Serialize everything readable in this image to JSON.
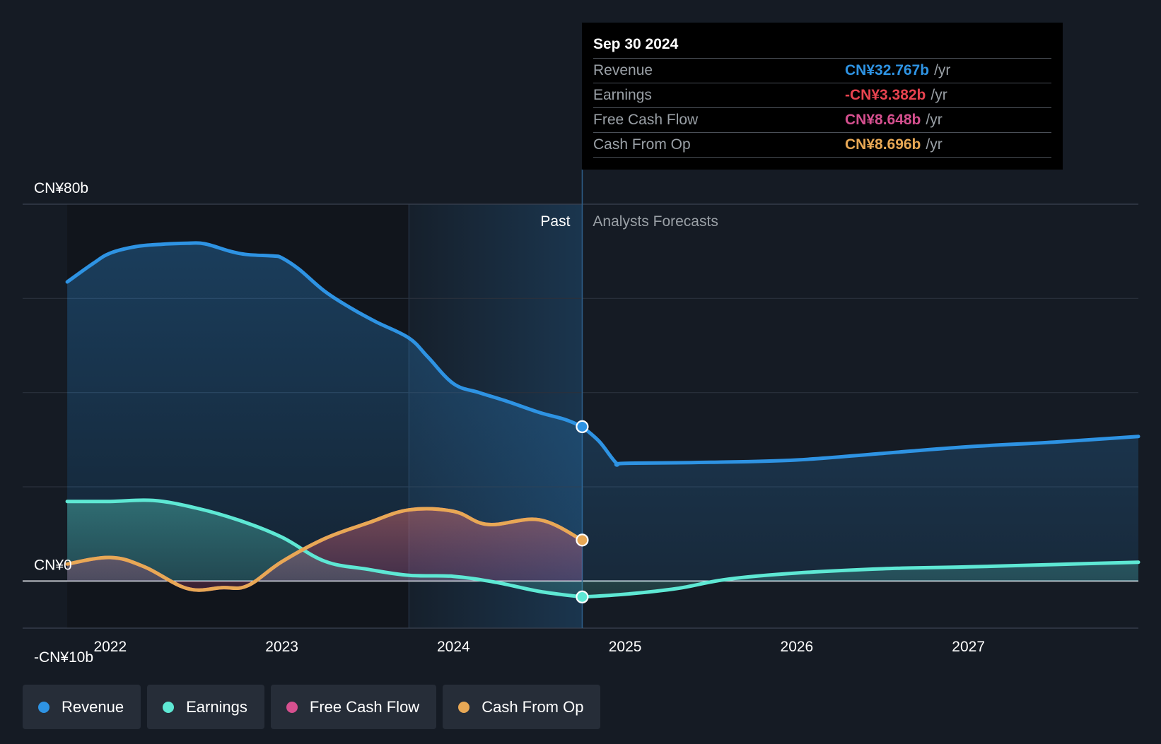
{
  "chart_data": {
    "type": "area",
    "currency_prefix": "CN¥",
    "y_labels": [
      {
        "value": 80,
        "text": "CN¥80b"
      },
      {
        "value": 0,
        "text": "CN¥0"
      },
      {
        "value": -10,
        "text": "-CN¥10b"
      }
    ],
    "ylim": [
      -10,
      80
    ],
    "gridlines": [
      80,
      60,
      40,
      20
    ],
    "x_ticks": [
      {
        "x": 2022,
        "label": "2022"
      },
      {
        "x": 2023,
        "label": "2023"
      },
      {
        "x": 2024,
        "label": "2024"
      },
      {
        "x": 2025,
        "label": "2025"
      },
      {
        "x": 2026,
        "label": "2026"
      },
      {
        "x": 2027,
        "label": "2027"
      }
    ],
    "xlim": [
      2021.49,
      2027.99
    ],
    "past_start": 2023.74,
    "divider_x": 2024.75,
    "past_label": "Past",
    "forecast_label": "Analysts Forecasts",
    "series": [
      {
        "name": "Revenue",
        "color": "#2e93e3",
        "fill_opacity": 0.28,
        "points": [
          [
            2021.75,
            63.5
          ],
          [
            2021.9,
            67.4
          ],
          [
            2022.0,
            69.6
          ],
          [
            2022.15,
            71.0
          ],
          [
            2022.3,
            71.5
          ],
          [
            2022.45,
            71.7
          ],
          [
            2022.55,
            71.6
          ],
          [
            2022.7,
            70.0
          ],
          [
            2022.8,
            69.3
          ],
          [
            2022.95,
            69.0
          ],
          [
            2023.0,
            68.6
          ],
          [
            2023.1,
            66.2
          ],
          [
            2023.25,
            61.5
          ],
          [
            2023.4,
            58.0
          ],
          [
            2023.55,
            55.0
          ],
          [
            2023.74,
            51.6
          ],
          [
            2023.85,
            47.6
          ],
          [
            2024.0,
            41.9
          ],
          [
            2024.15,
            40.0
          ],
          [
            2024.3,
            38.3
          ],
          [
            2024.5,
            35.8
          ],
          [
            2024.65,
            34.3
          ],
          [
            2024.75,
            32.767
          ]
        ],
        "forecast": [
          [
            2024.75,
            32.767
          ],
          [
            2024.85,
            29.6
          ],
          [
            2024.95,
            25.0
          ],
          [
            2025.0,
            25.0
          ],
          [
            2025.5,
            25.2
          ],
          [
            2026.0,
            25.7
          ],
          [
            2026.5,
            27.1
          ],
          [
            2027.0,
            28.5
          ],
          [
            2027.5,
            29.5
          ],
          [
            2027.99,
            30.7
          ]
        ]
      },
      {
        "name": "Earnings",
        "color": "#5ee8d4",
        "fill_opacity": 0.28,
        "points": [
          [
            2021.75,
            16.9
          ],
          [
            2022.0,
            16.9
          ],
          [
            2022.25,
            17.1
          ],
          [
            2022.5,
            15.5
          ],
          [
            2022.75,
            12.9
          ],
          [
            2023.0,
            9.3
          ],
          [
            2023.25,
            4.2
          ],
          [
            2023.5,
            2.5
          ],
          [
            2023.74,
            1.2
          ],
          [
            2024.0,
            1.0
          ],
          [
            2024.25,
            -0.3
          ],
          [
            2024.5,
            -2.2
          ],
          [
            2024.75,
            -3.382
          ]
        ],
        "forecast": [
          [
            2024.75,
            -3.382
          ],
          [
            2025.0,
            -2.8
          ],
          [
            2025.3,
            -1.6
          ],
          [
            2025.6,
            0.4
          ],
          [
            2026.0,
            1.7
          ],
          [
            2026.5,
            2.6
          ],
          [
            2027.0,
            3.0
          ],
          [
            2027.5,
            3.5
          ],
          [
            2027.99,
            4.0
          ]
        ]
      },
      {
        "name": "Free Cash Flow",
        "color": "#d6508f",
        "fill_opacity": 0.0,
        "points": [
          [
            2021.75,
            3.6
          ],
          [
            2022.0,
            5.0
          ],
          [
            2022.2,
            3.0
          ],
          [
            2022.45,
            -1.6
          ],
          [
            2022.65,
            -1.4
          ],
          [
            2022.8,
            -1.0
          ],
          [
            2023.0,
            4.1
          ],
          [
            2023.25,
            9.0
          ],
          [
            2023.5,
            12.3
          ],
          [
            2023.74,
            15.1
          ],
          [
            2024.0,
            14.8
          ],
          [
            2024.2,
            12.0
          ],
          [
            2024.5,
            13.0
          ],
          [
            2024.75,
            8.648
          ]
        ],
        "forecast": []
      },
      {
        "name": "Cash From Op",
        "color": "#e8a855",
        "fill_opacity": 0.28,
        "points": [
          [
            2021.75,
            3.6
          ],
          [
            2022.0,
            5.0
          ],
          [
            2022.2,
            3.0
          ],
          [
            2022.45,
            -1.6
          ],
          [
            2022.65,
            -1.4
          ],
          [
            2022.8,
            -1.0
          ],
          [
            2023.0,
            4.1
          ],
          [
            2023.25,
            9.0
          ],
          [
            2023.5,
            12.3
          ],
          [
            2023.74,
            15.1
          ],
          [
            2024.0,
            14.8
          ],
          [
            2024.2,
            12.0
          ],
          [
            2024.5,
            13.0
          ],
          [
            2024.75,
            8.696
          ]
        ],
        "forecast": []
      }
    ],
    "markers": [
      {
        "series": "Revenue",
        "x": 2024.75,
        "y": 32.767
      },
      {
        "series": "Cash From Op",
        "x": 2024.75,
        "y": 8.696
      },
      {
        "series": "Earnings",
        "x": 2024.75,
        "y": -3.382
      }
    ]
  },
  "tooltip": {
    "date": "Sep 30 2024",
    "rows": [
      {
        "label": "Revenue",
        "value": "CN¥32.767b",
        "unit": "/yr",
        "color": "#2e93e3"
      },
      {
        "label": "Earnings",
        "value": "-CN¥3.382b",
        "unit": "/yr",
        "color": "#e8434f"
      },
      {
        "label": "Free Cash Flow",
        "value": "CN¥8.648b",
        "unit": "/yr",
        "color": "#d6508f"
      },
      {
        "label": "Cash From Op",
        "value": "CN¥8.696b",
        "unit": "/yr",
        "color": "#e8a855"
      }
    ]
  },
  "legend": [
    {
      "label": "Revenue",
      "color": "#2e93e3"
    },
    {
      "label": "Earnings",
      "color": "#5ee8d4"
    },
    {
      "label": "Free Cash Flow",
      "color": "#d6508f"
    },
    {
      "label": "Cash From Op",
      "color": "#e8a855"
    }
  ]
}
